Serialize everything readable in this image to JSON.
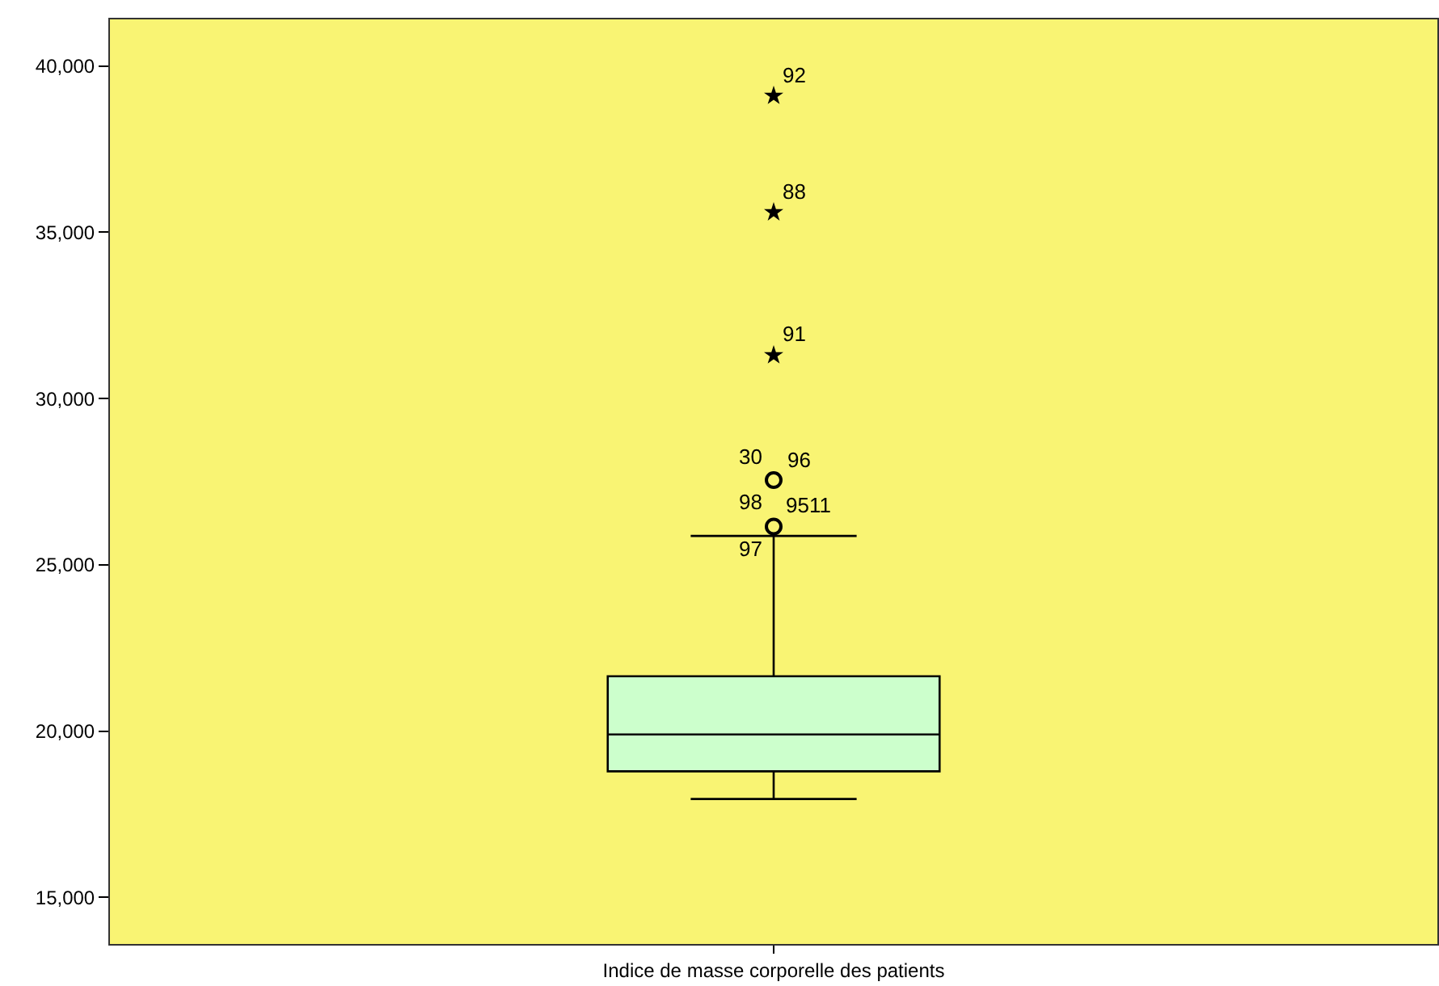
{
  "chart_data": {
    "type": "box",
    "categories": [
      "Indice de masse corporelle des patients"
    ],
    "boxes": [
      {
        "low": 17960,
        "q1": 18790,
        "median": 19900,
        "q3": 21650,
        "high": 25870,
        "outliers": [
          26150,
          27550,
          31300,
          35600,
          39100
        ]
      }
    ],
    "color": "#ccffcc",
    "ylim": [
      13600,
      41400
    ],
    "yticks": [
      {
        "value": 15000,
        "label": "15,000"
      },
      {
        "value": 20000,
        "label": "20,000"
      },
      {
        "value": 25000,
        "label": "25,000"
      },
      {
        "value": 30000,
        "label": "30,000"
      },
      {
        "value": 35000,
        "label": "35,000"
      },
      {
        "value": 40000,
        "label": "40,000"
      }
    ],
    "grid": false,
    "annotations": [
      "92",
      "88",
      "91",
      "30",
      "96",
      "98",
      "9511",
      "97"
    ]
  }
}
